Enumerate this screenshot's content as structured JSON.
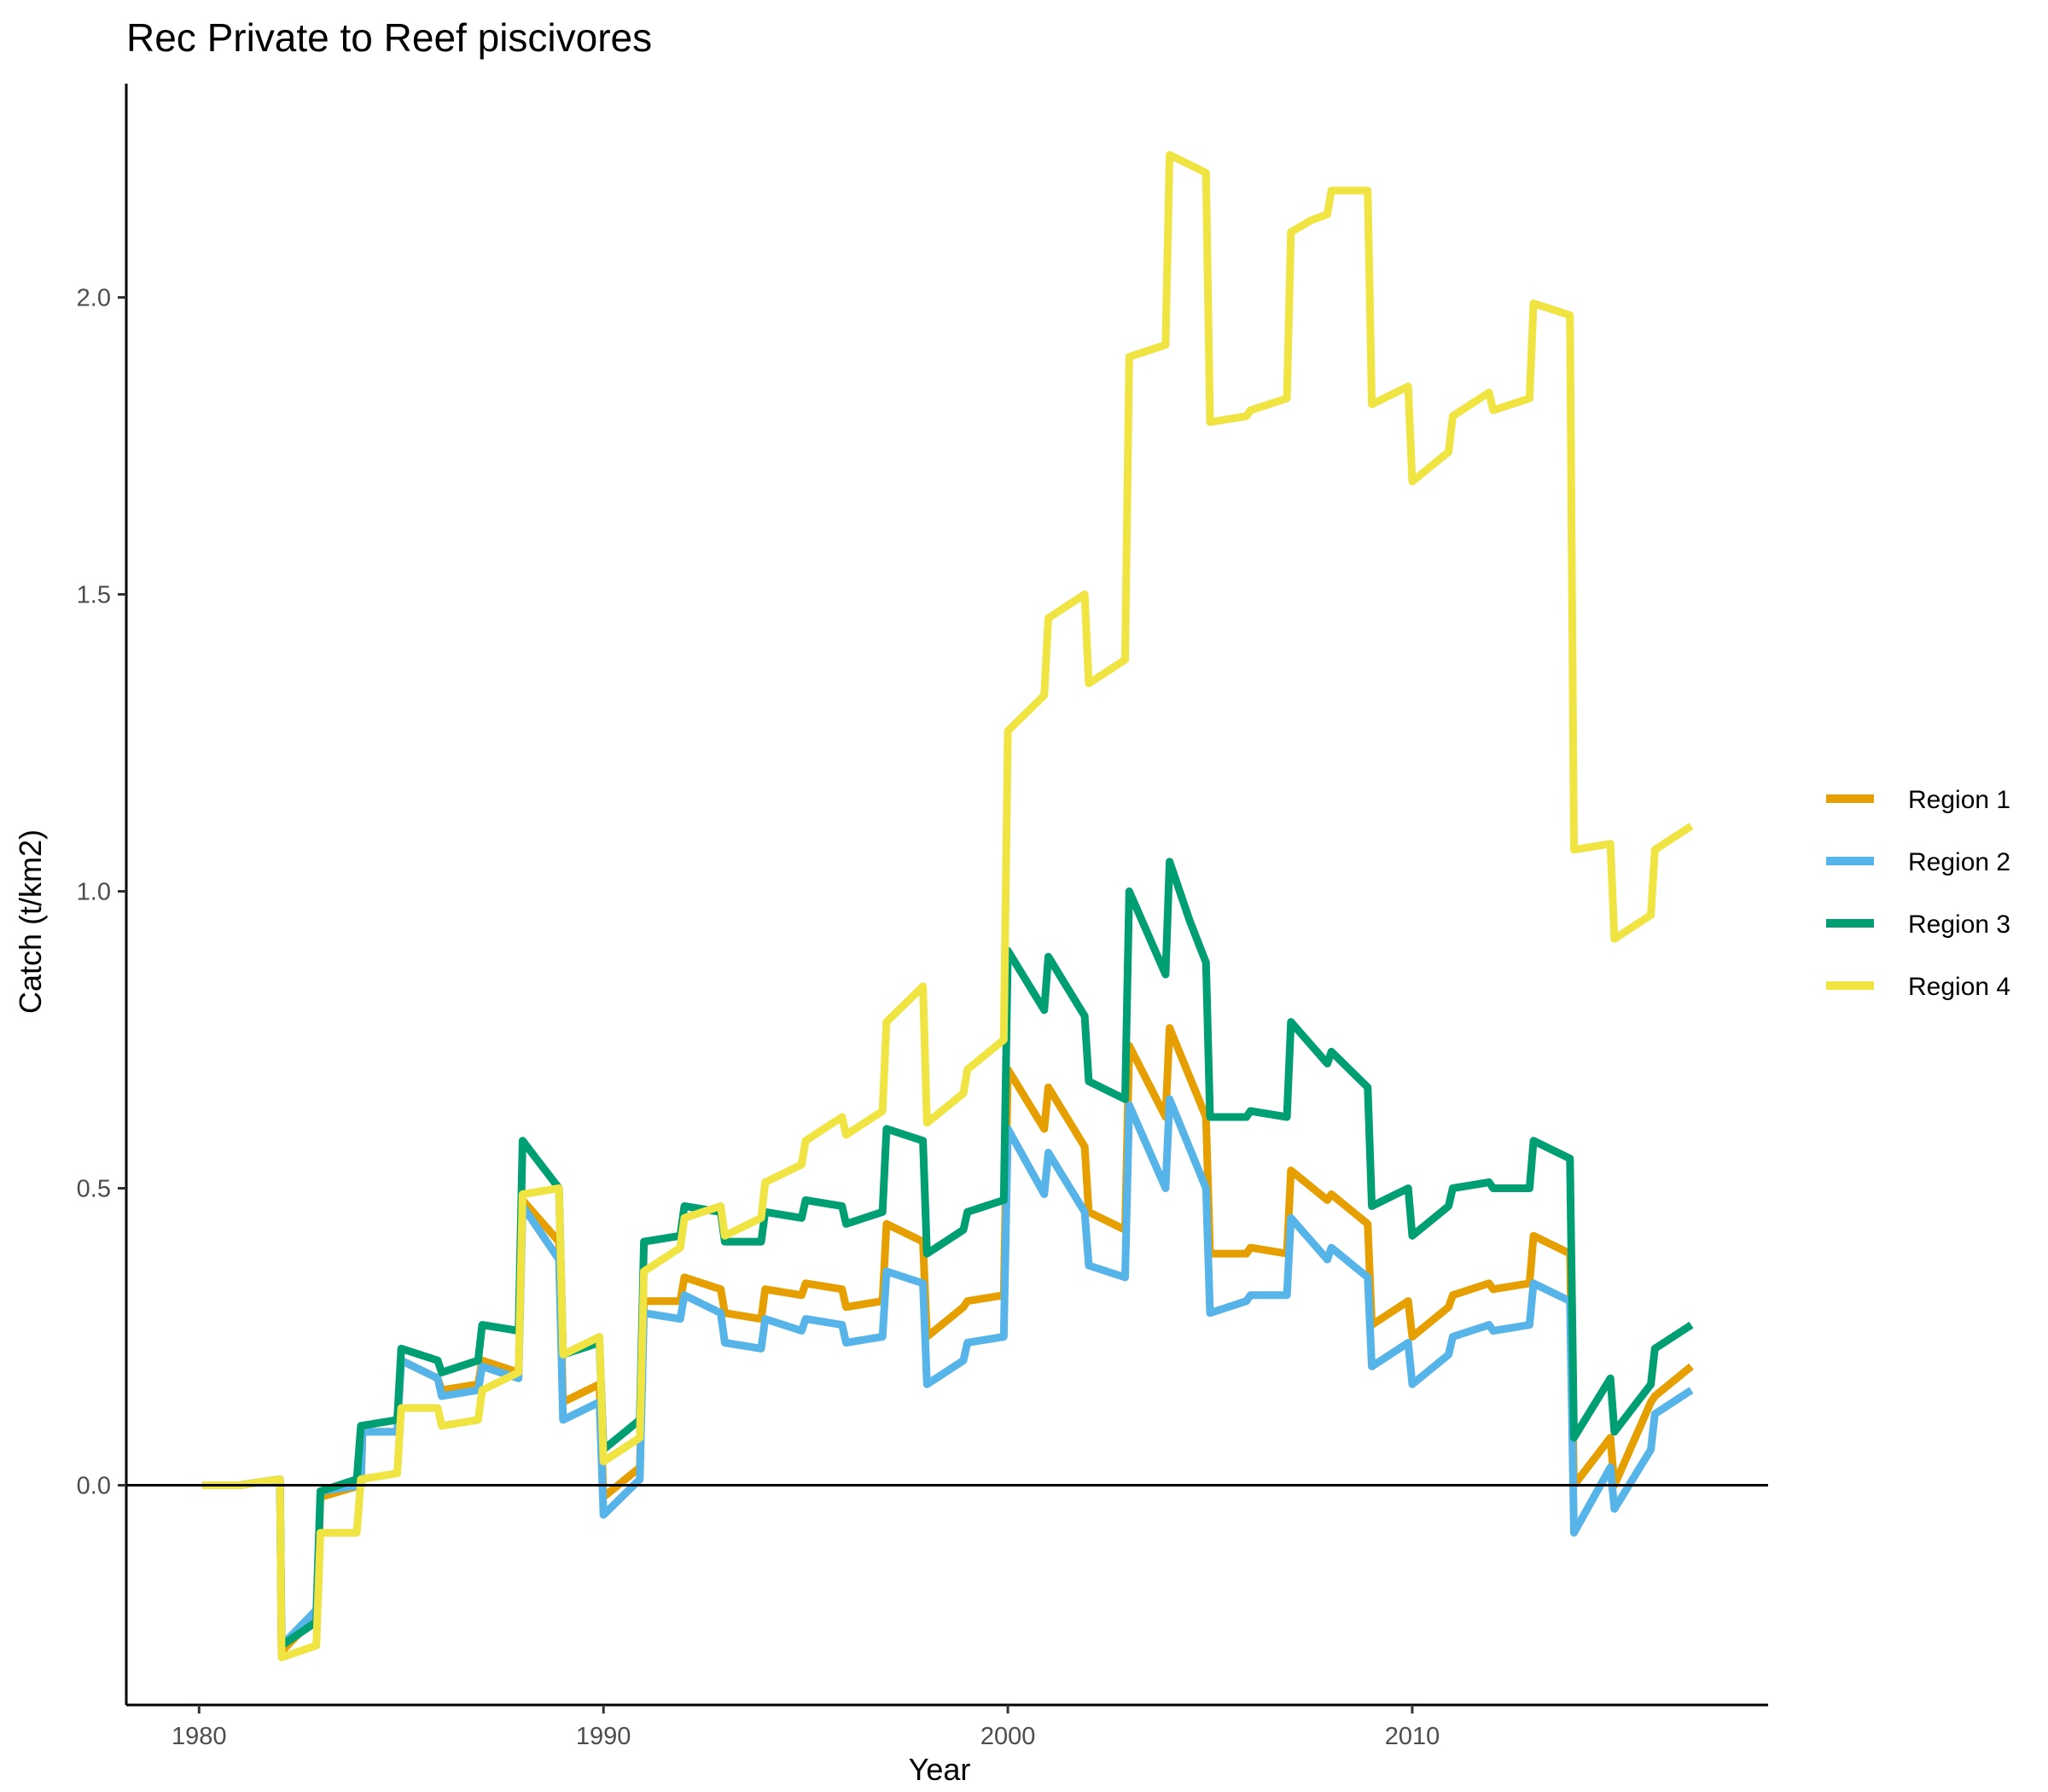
{
  "chart_data": {
    "type": "line",
    "title": "Rec Private to Reef piscivores",
    "xlabel": "Year",
    "ylabel": "Catch (t/km2)",
    "xlim": [
      1978.2,
      2018.8
    ],
    "ylim": [
      -0.37,
      2.36
    ],
    "x_ticks": [
      1980,
      1990,
      2000,
      2010
    ],
    "y_ticks": [
      0.0,
      0.5,
      1.0,
      1.5,
      2.0
    ],
    "x_tick_labels": [
      "1980",
      "1990",
      "2000",
      "2010"
    ],
    "y_tick_labels": [
      "0.0",
      "0.5",
      "1.0",
      "1.5",
      "2.0"
    ],
    "zero_line": true,
    "grid": false,
    "legend_position": "right",
    "series": [
      {
        "name": "Region 1",
        "color": "#E69F00",
        "points": [
          [
            1980.08,
            0.0
          ],
          [
            1981,
            0.0
          ],
          [
            1982,
            0.01
          ],
          [
            1982.04,
            -0.28
          ],
          [
            1982.9,
            -0.22
          ],
          [
            1983,
            -0.02
          ],
          [
            1984,
            0.0
          ],
          [
            1984.04,
            0.09
          ],
          [
            1984.9,
            0.09
          ],
          [
            1985,
            0.21
          ],
          [
            1985.9,
            0.18
          ],
          [
            1986,
            0.16
          ],
          [
            1986.9,
            0.17
          ],
          [
            1987,
            0.21
          ],
          [
            1987.9,
            0.19
          ],
          [
            1988,
            0.48
          ],
          [
            1988.9,
            0.41
          ],
          [
            1989,
            0.14
          ],
          [
            1989.9,
            0.17
          ],
          [
            1990,
            -0.02
          ],
          [
            1990.9,
            0.03
          ],
          [
            1991,
            0.31
          ],
          [
            1991.9,
            0.31
          ],
          [
            1992,
            0.35
          ],
          [
            1992.9,
            0.33
          ],
          [
            1993,
            0.29
          ],
          [
            1993.9,
            0.28
          ],
          [
            1994,
            0.33
          ],
          [
            1994.9,
            0.32
          ],
          [
            1995,
            0.34
          ],
          [
            1995.9,
            0.33
          ],
          [
            1996,
            0.3
          ],
          [
            1996.9,
            0.31
          ],
          [
            1997,
            0.44
          ],
          [
            1997.9,
            0.41
          ],
          [
            1998,
            0.25
          ],
          [
            1998.9,
            0.3
          ],
          [
            1999,
            0.31
          ],
          [
            1999.9,
            0.32
          ],
          [
            2000,
            0.7
          ],
          [
            2000.9,
            0.6
          ],
          [
            2001,
            0.67
          ],
          [
            2001.9,
            0.57
          ],
          [
            2002,
            0.46
          ],
          [
            2002.9,
            0.43
          ],
          [
            2003,
            0.74
          ],
          [
            2003.9,
            0.62
          ],
          [
            2004,
            0.77
          ],
          [
            2004.9,
            0.62
          ],
          [
            2005,
            0.39
          ],
          [
            2005.9,
            0.39
          ],
          [
            2006,
            0.4
          ],
          [
            2006.9,
            0.39
          ],
          [
            2007,
            0.53
          ],
          [
            2007.9,
            0.48
          ],
          [
            2008,
            0.49
          ],
          [
            2008.9,
            0.44
          ],
          [
            2009,
            0.27
          ],
          [
            2009.9,
            0.31
          ],
          [
            2010,
            0.25
          ],
          [
            2010.9,
            0.3
          ],
          [
            2011,
            0.32
          ],
          [
            2011.9,
            0.34
          ],
          [
            2012,
            0.33
          ],
          [
            2012.9,
            0.34
          ],
          [
            2013,
            0.42
          ],
          [
            2013.9,
            0.39
          ],
          [
            2014,
            0.0
          ],
          [
            2014.9,
            0.08
          ],
          [
            2015,
            0.0
          ],
          [
            2015.9,
            0.14
          ],
          [
            2016,
            0.15
          ],
          [
            2016.9,
            0.2
          ]
        ]
      },
      {
        "name": "Region 2",
        "color": "#56B4E9",
        "points": [
          [
            1980.08,
            0.0
          ],
          [
            1981,
            0.0
          ],
          [
            1982,
            0.01
          ],
          [
            1982.04,
            -0.27
          ],
          [
            1982.9,
            -0.21
          ],
          [
            1983,
            -0.01
          ],
          [
            1984,
            0.0
          ],
          [
            1984.04,
            0.09
          ],
          [
            1984.9,
            0.09
          ],
          [
            1985,
            0.21
          ],
          [
            1985.9,
            0.18
          ],
          [
            1986,
            0.15
          ],
          [
            1986.9,
            0.16
          ],
          [
            1987,
            0.2
          ],
          [
            1987.9,
            0.18
          ],
          [
            1988,
            0.47
          ],
          [
            1988.9,
            0.38
          ],
          [
            1989,
            0.11
          ],
          [
            1989.9,
            0.14
          ],
          [
            1990,
            -0.05
          ],
          [
            1990.9,
            0.01
          ],
          [
            1991,
            0.29
          ],
          [
            1991.9,
            0.28
          ],
          [
            1992,
            0.32
          ],
          [
            1992.9,
            0.29
          ],
          [
            1993,
            0.24
          ],
          [
            1993.9,
            0.23
          ],
          [
            1994,
            0.28
          ],
          [
            1994.9,
            0.26
          ],
          [
            1995,
            0.28
          ],
          [
            1995.9,
            0.27
          ],
          [
            1996,
            0.24
          ],
          [
            1996.9,
            0.25
          ],
          [
            1997,
            0.36
          ],
          [
            1997.9,
            0.34
          ],
          [
            1998,
            0.17
          ],
          [
            1998.9,
            0.21
          ],
          [
            1999,
            0.24
          ],
          [
            1999.9,
            0.25
          ],
          [
            2000,
            0.6
          ],
          [
            2000.9,
            0.49
          ],
          [
            2001,
            0.56
          ],
          [
            2001.9,
            0.46
          ],
          [
            2002,
            0.37
          ],
          [
            2002.9,
            0.35
          ],
          [
            2003,
            0.64
          ],
          [
            2003.9,
            0.5
          ],
          [
            2004,
            0.65
          ],
          [
            2004.9,
            0.5
          ],
          [
            2005,
            0.29
          ],
          [
            2005.9,
            0.31
          ],
          [
            2006,
            0.32
          ],
          [
            2006.9,
            0.32
          ],
          [
            2007,
            0.45
          ],
          [
            2007.9,
            0.38
          ],
          [
            2008,
            0.4
          ],
          [
            2008.9,
            0.35
          ],
          [
            2009,
            0.2
          ],
          [
            2009.9,
            0.24
          ],
          [
            2010,
            0.17
          ],
          [
            2010.9,
            0.22
          ],
          [
            2011,
            0.25
          ],
          [
            2011.9,
            0.27
          ],
          [
            2012,
            0.26
          ],
          [
            2012.9,
            0.27
          ],
          [
            2013,
            0.34
          ],
          [
            2013.9,
            0.31
          ],
          [
            2014,
            -0.08
          ],
          [
            2014.9,
            0.03
          ],
          [
            2015,
            -0.04
          ],
          [
            2015.9,
            0.06
          ],
          [
            2016,
            0.12
          ],
          [
            2016.9,
            0.16
          ]
        ]
      },
      {
        "name": "Region 3",
        "color": "#009E73",
        "points": [
          [
            1980.08,
            0.0
          ],
          [
            1981,
            0.0
          ],
          [
            1982,
            0.01
          ],
          [
            1982.04,
            -0.27
          ],
          [
            1982.9,
            -0.23
          ],
          [
            1983,
            -0.01
          ],
          [
            1983.9,
            0.01
          ],
          [
            1984,
            0.1
          ],
          [
            1984.9,
            0.11
          ],
          [
            1985,
            0.23
          ],
          [
            1985.9,
            0.21
          ],
          [
            1986,
            0.19
          ],
          [
            1986.9,
            0.21
          ],
          [
            1987,
            0.27
          ],
          [
            1987.9,
            0.26
          ],
          [
            1988,
            0.58
          ],
          [
            1988.9,
            0.5
          ],
          [
            1989,
            0.22
          ],
          [
            1989.9,
            0.24
          ],
          [
            1990,
            0.06
          ],
          [
            1990.9,
            0.11
          ],
          [
            1991,
            0.41
          ],
          [
            1991.9,
            0.42
          ],
          [
            1992,
            0.47
          ],
          [
            1992.9,
            0.46
          ],
          [
            1993,
            0.41
          ],
          [
            1993.9,
            0.41
          ],
          [
            1994,
            0.46
          ],
          [
            1994.9,
            0.45
          ],
          [
            1995,
            0.48
          ],
          [
            1995.9,
            0.47
          ],
          [
            1996,
            0.44
          ],
          [
            1996.9,
            0.46
          ],
          [
            1997,
            0.6
          ],
          [
            1997.9,
            0.58
          ],
          [
            1998,
            0.39
          ],
          [
            1998.9,
            0.43
          ],
          [
            1999,
            0.46
          ],
          [
            1999.9,
            0.48
          ],
          [
            2000,
            0.9
          ],
          [
            2000.9,
            0.8
          ],
          [
            2001,
            0.89
          ],
          [
            2001.9,
            0.79
          ],
          [
            2002,
            0.68
          ],
          [
            2002.9,
            0.65
          ],
          [
            2003,
            1.0
          ],
          [
            2003.9,
            0.86
          ],
          [
            2004,
            1.05
          ],
          [
            2004.5,
            0.95
          ],
          [
            2004.9,
            0.88
          ],
          [
            2005,
            0.62
          ],
          [
            2005.9,
            0.62
          ],
          [
            2006,
            0.63
          ],
          [
            2006.9,
            0.62
          ],
          [
            2007,
            0.78
          ],
          [
            2007.9,
            0.71
          ],
          [
            2008,
            0.73
          ],
          [
            2008.9,
            0.67
          ],
          [
            2009,
            0.47
          ],
          [
            2009.9,
            0.5
          ],
          [
            2010,
            0.42
          ],
          [
            2010.9,
            0.47
          ],
          [
            2011,
            0.5
          ],
          [
            2011.9,
            0.51
          ],
          [
            2012,
            0.5
          ],
          [
            2012.9,
            0.5
          ],
          [
            2013,
            0.58
          ],
          [
            2013.9,
            0.55
          ],
          [
            2014,
            0.08
          ],
          [
            2014.9,
            0.18
          ],
          [
            2015,
            0.09
          ],
          [
            2015.9,
            0.17
          ],
          [
            2016,
            0.23
          ],
          [
            2016.9,
            0.27
          ]
        ]
      },
      {
        "name": "Region 4",
        "color": "#F0E442",
        "points": [
          [
            1980.08,
            0.0
          ],
          [
            1981,
            0.0
          ],
          [
            1982,
            0.01
          ],
          [
            1982.04,
            -0.29
          ],
          [
            1982.9,
            -0.27
          ],
          [
            1983,
            -0.08
          ],
          [
            1983.9,
            -0.08
          ],
          [
            1984,
            0.01
          ],
          [
            1984.9,
            0.02
          ],
          [
            1985,
            0.13
          ],
          [
            1985.9,
            0.13
          ],
          [
            1986,
            0.1
          ],
          [
            1986.9,
            0.11
          ],
          [
            1987,
            0.16
          ],
          [
            1987.9,
            0.19
          ],
          [
            1988,
            0.49
          ],
          [
            1988.9,
            0.5
          ],
          [
            1989,
            0.22
          ],
          [
            1989.9,
            0.25
          ],
          [
            1990,
            0.04
          ],
          [
            1990.9,
            0.08
          ],
          [
            1991,
            0.36
          ],
          [
            1991.9,
            0.4
          ],
          [
            1992,
            0.45
          ],
          [
            1992.9,
            0.47
          ],
          [
            1993,
            0.42
          ],
          [
            1993.9,
            0.45
          ],
          [
            1994,
            0.51
          ],
          [
            1994.9,
            0.54
          ],
          [
            1995,
            0.58
          ],
          [
            1995.9,
            0.62
          ],
          [
            1996,
            0.59
          ],
          [
            1996.9,
            0.63
          ],
          [
            1997,
            0.78
          ],
          [
            1997.9,
            0.84
          ],
          [
            1998,
            0.61
          ],
          [
            1998.9,
            0.66
          ],
          [
            1999,
            0.7
          ],
          [
            1999.9,
            0.75
          ],
          [
            2000,
            1.27
          ],
          [
            2000.9,
            1.33
          ],
          [
            2001,
            1.46
          ],
          [
            2001.9,
            1.5
          ],
          [
            2002,
            1.35
          ],
          [
            2002.9,
            1.39
          ],
          [
            2003,
            1.9
          ],
          [
            2003.9,
            1.92
          ],
          [
            2004,
            2.24
          ],
          [
            2004.9,
            2.21
          ],
          [
            2005,
            1.79
          ],
          [
            2005.9,
            1.8
          ],
          [
            2006,
            1.81
          ],
          [
            2006.9,
            1.83
          ],
          [
            2007,
            2.11
          ],
          [
            2007.5,
            2.13
          ],
          [
            2007.9,
            2.14
          ],
          [
            2008,
            2.18
          ],
          [
            2008.9,
            2.18
          ],
          [
            2009,
            1.82
          ],
          [
            2009.9,
            1.85
          ],
          [
            2010,
            1.69
          ],
          [
            2010.9,
            1.74
          ],
          [
            2011,
            1.8
          ],
          [
            2011.9,
            1.84
          ],
          [
            2012,
            1.81
          ],
          [
            2012.9,
            1.83
          ],
          [
            2013,
            1.99
          ],
          [
            2013.9,
            1.97
          ],
          [
            2014,
            1.07
          ],
          [
            2014.9,
            1.08
          ],
          [
            2015,
            0.92
          ],
          [
            2015.9,
            0.96
          ],
          [
            2016,
            1.07
          ],
          [
            2016.9,
            1.11
          ]
        ]
      }
    ]
  }
}
